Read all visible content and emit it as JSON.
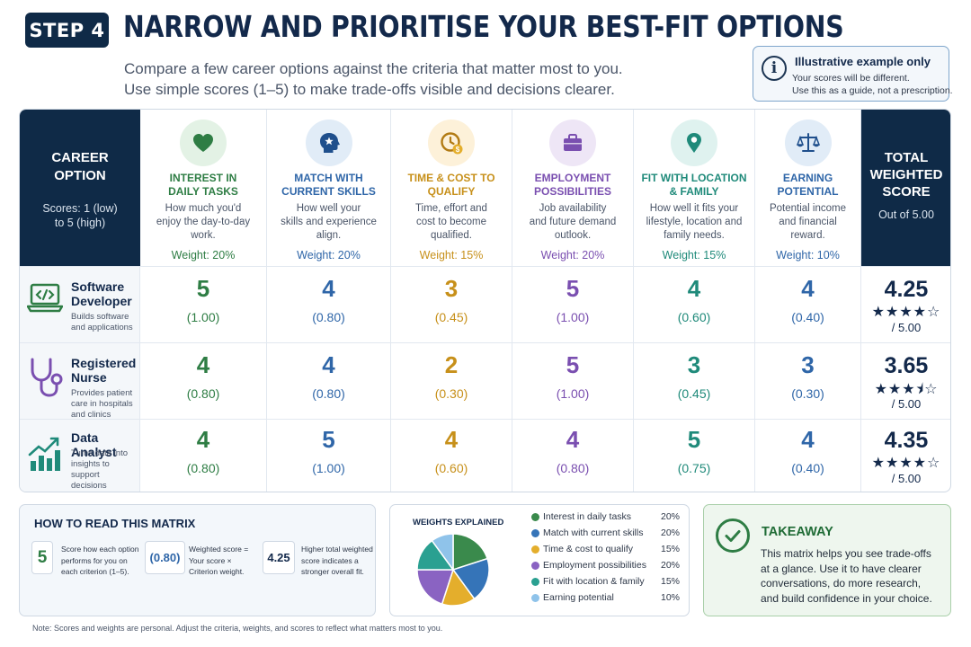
{
  "header": {
    "step": "STEP 4",
    "title": "NARROW AND PRIORITISE YOUR BEST-FIT OPTIONS",
    "subtitle_lines": [
      "Compare a few career options against the criteria that matter most to you.",
      "Use simple scores (1–5) to make trade-offs visible and decisions clearer."
    ]
  },
  "note": {
    "icon": "info-icon",
    "title": "Illustrative example only",
    "lines": [
      "Your scores will be different.",
      "Use this as a guide, not a prescription."
    ]
  },
  "matrix": {
    "left_header": {
      "title_lines": [
        "CAREER",
        "OPTION"
      ],
      "scale_lines": [
        "Scores: 1 (low)",
        "to 5 (high)"
      ]
    },
    "right_header": {
      "title_lines": [
        "TOTAL",
        "WEIGHTED",
        "SCORE"
      ],
      "sub": "Out of 5.00"
    },
    "criteria": [
      {
        "name_lines": [
          "INTEREST IN",
          "DAILY TASKS"
        ],
        "desc_lines": [
          "How much you'd",
          "enjoy the day-to-day",
          "work."
        ],
        "weight": "Weight: 20%",
        "color": "#2e7d44",
        "icon_bg": "#e3f2e5",
        "icon": "heart-icon"
      },
      {
        "name_lines": [
          "MATCH WITH",
          "CURRENT SKILLS"
        ],
        "desc_lines": [
          "How well your",
          "skills and experience",
          "align."
        ],
        "weight": "Weight: 20%",
        "color": "#2f66a8",
        "icon_bg": "#e1ecf7",
        "icon": "head-star-icon"
      },
      {
        "name_lines": [
          "TIME & COST TO",
          "QUALIFY"
        ],
        "desc_lines": [
          "Time, effort and",
          "cost to become",
          "qualified."
        ],
        "weight": "Weight: 15%",
        "color": "#c7901a",
        "icon_bg": "#fdf1d9",
        "icon": "clock-dollar-icon"
      },
      {
        "name_lines": [
          "EMPLOYMENT",
          "POSSIBILITIES"
        ],
        "desc_lines": [
          "Job availability",
          "and future demand",
          "outlook."
        ],
        "weight": "Weight: 20%",
        "color": "#7a4fb0",
        "icon_bg": "#eee6f6",
        "icon": "briefcase-icon"
      },
      {
        "name_lines": [
          "FIT WITH LOCATION",
          "& FAMILY"
        ],
        "desc_lines": [
          "How well it fits your",
          "lifestyle, location and",
          "family needs."
        ],
        "weight": "Weight: 15%",
        "color": "#1f8a7a",
        "icon_bg": "#dff2ef",
        "icon": "location-pin-icon"
      },
      {
        "name_lines": [
          "EARNING",
          "POTENTIAL"
        ],
        "desc_lines": [
          "Potential income",
          "and financial",
          "reward."
        ],
        "weight": "Weight: 10%",
        "color": "#2f66a8",
        "icon_bg": "#e1ecf7",
        "icon": "scales-icon"
      }
    ],
    "rows": [
      {
        "name_lines": [
          "Software",
          "Developer"
        ],
        "desc_lines": [
          "Builds software",
          "and applications"
        ],
        "icon": "laptop-code-icon",
        "scores": [
          "5",
          "4",
          "3",
          "5",
          "4",
          "4"
        ],
        "weighted": [
          "(1.00)",
          "(0.80)",
          "(0.45)",
          "(1.00)",
          "(0.60)",
          "(0.40)"
        ],
        "total": "4.25",
        "rating": 4.25,
        "out_of": "/ 5.00"
      },
      {
        "name_lines": [
          "Registered",
          "Nurse"
        ],
        "desc_lines": [
          "Provides patient",
          "care in hospitals",
          "and clinics"
        ],
        "icon": "stethoscope-icon",
        "scores": [
          "4",
          "4",
          "2",
          "5",
          "3",
          "3"
        ],
        "weighted": [
          "(0.80)",
          "(0.80)",
          "(0.30)",
          "(1.00)",
          "(0.45)",
          "(0.30)"
        ],
        "total": "3.65",
        "rating": 3.65,
        "out_of": "/ 5.00"
      },
      {
        "name_lines": [
          "Data Analyst"
        ],
        "desc_lines": [
          "Turns data into",
          "insights to support",
          "decisions"
        ],
        "icon": "bar-chart-trend-icon",
        "scores": [
          "4",
          "5",
          "4",
          "4",
          "5",
          "4"
        ],
        "weighted": [
          "(0.80)",
          "(1.00)",
          "(0.60)",
          "(0.80)",
          "(0.75)",
          "(0.40)"
        ],
        "total": "4.35",
        "rating": 4.35,
        "out_of": "/ 5.00"
      }
    ]
  },
  "how_to_read": {
    "title": "HOW TO READ THIS MATRIX",
    "items": [
      {
        "sample": "5",
        "sample_color": "#2e7d44",
        "lines": [
          "Score how each option",
          "performs for you on",
          "each criterion (1–5)."
        ]
      },
      {
        "sample": "(0.80)",
        "sample_color": "#2f66a8",
        "lines": [
          "Weighted score =",
          "Your score ×",
          "Criterion weight."
        ]
      },
      {
        "sample": "4.25",
        "sample_color": "#13294b",
        "lines": [
          "Higher total weighted",
          "score indicates a",
          "stronger overall fit."
        ]
      }
    ]
  },
  "weights": {
    "title": "WEIGHTS EXPLAINED",
    "items": [
      {
        "label": "Interest in daily tasks",
        "pct": "20%",
        "value": 20,
        "color": "#3a8a4c"
      },
      {
        "label": "Match with current skills",
        "pct": "20%",
        "value": 20,
        "color": "#3574b8"
      },
      {
        "label": "Time & cost to qualify",
        "pct": "15%",
        "value": 15,
        "color": "#e4ae2c"
      },
      {
        "label": "Employment possibilities",
        "pct": "20%",
        "value": 20,
        "color": "#8a63c2"
      },
      {
        "label": "Fit with location & family",
        "pct": "15%",
        "value": 15,
        "color": "#2aa091"
      },
      {
        "label": "Earning potential",
        "pct": "10%",
        "value": 10,
        "color": "#8fc3ea"
      }
    ]
  },
  "takeaway": {
    "icon": "check-circle-icon",
    "title": "TAKEAWAY",
    "lines": [
      "This matrix helps you see trade-offs",
      "at a glance. Use it to have clearer",
      "conversations, do more research,",
      "and build confidence in your choice."
    ]
  },
  "footnote": "Note: Scores and weights are personal. Adjust the criteria, weights, and scores to reflect what matters most to you."
}
